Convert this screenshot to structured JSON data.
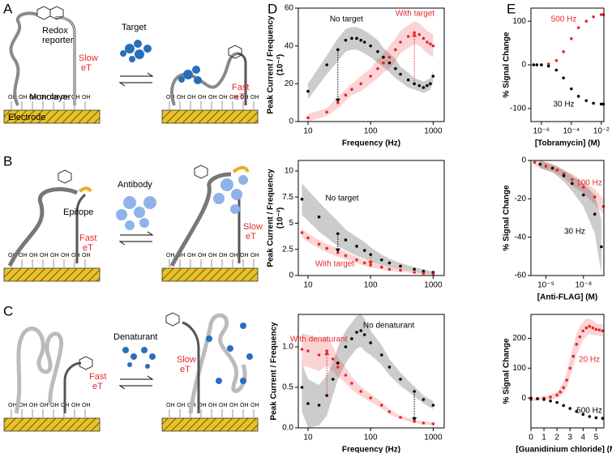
{
  "schematic": {
    "panel_letters": [
      "A",
      "B",
      "C",
      "D",
      "E"
    ],
    "surface_group": "OH",
    "a": {
      "reporter": [
        "Redox",
        "reporter"
      ],
      "slow_et": [
        "Slow",
        "eT"
      ],
      "target": "Target",
      "monolayer": "Monolayer",
      "fast_et": [
        "Fast",
        "eT"
      ],
      "electrode": "Electrode"
    },
    "b": {
      "antibody": "Antibody",
      "epitope": "Epitope",
      "fast_et": [
        "Fast",
        "eT"
      ],
      "slow_et": [
        "Slow",
        "eT"
      ]
    },
    "c": {
      "denaturant": "Denaturant",
      "fast_et": [
        "Fast",
        "eT"
      ],
      "slow_et": [
        "Slow",
        "eT"
      ]
    }
  },
  "chart_data": [
    {
      "type": "scatter",
      "xscale": "log",
      "ylabel": "Peak Current / Frequency",
      "yunit": "(10⁻³)",
      "xlabel": "Frequency (Hz)",
      "xlim": [
        7,
        1500
      ],
      "xticks": [
        10,
        100,
        1000
      ],
      "ylim": [
        0,
        60
      ],
      "yticks": [
        0,
        20,
        40,
        60
      ],
      "series": [
        {
          "name": "No target",
          "color": "#000000",
          "x": [
            10,
            20,
            30,
            40,
            50,
            60,
            70,
            80,
            100,
            130,
            160,
            200,
            250,
            300,
            400,
            500,
            600,
            700,
            800,
            900,
            1000
          ],
          "values": [
            16,
            30,
            38,
            43,
            44,
            44,
            43,
            42,
            40,
            37,
            34,
            31,
            28,
            25,
            22,
            20,
            19,
            18,
            19,
            20,
            24
          ],
          "error": [
            4,
            5,
            6,
            6,
            6,
            6,
            6,
            6,
            6,
            6,
            5,
            5,
            5,
            4,
            4,
            3,
            3,
            3,
            3,
            3,
            3
          ]
        },
        {
          "name": "With target",
          "color": "#e8262a",
          "x": [
            10,
            20,
            30,
            40,
            50,
            70,
            100,
            130,
            160,
            200,
            250,
            300,
            400,
            500,
            600,
            700,
            800,
            900,
            1000
          ],
          "values": [
            2,
            5,
            10,
            14,
            17,
            20,
            24,
            28,
            31,
            34,
            38,
            42,
            45,
            47,
            46,
            44,
            42,
            41,
            40
          ],
          "error": [
            2,
            2,
            3,
            3,
            3,
            4,
            4,
            5,
            5,
            6,
            6,
            6,
            6,
            6,
            6,
            6,
            6,
            6,
            6
          ]
        }
      ],
      "arrows": [
        {
          "x": 30,
          "from": 38,
          "to": 10,
          "color": "#000000"
        },
        {
          "x": 500,
          "from": 20,
          "to": 47,
          "color": "#e8262a"
        }
      ]
    },
    {
      "type": "scatter",
      "xscale": "log",
      "ylabel": "Peak Current / Frequency",
      "yunit": "(10⁻³)",
      "xlim": [
        7,
        1500
      ],
      "xticks": [
        10,
        100,
        1000
      ],
      "ylim": [
        0,
        11
      ],
      "yticks": [
        0,
        2.5,
        5,
        7.5,
        10
      ],
      "series": [
        {
          "name": "No target",
          "color": "#000000",
          "x": [
            8,
            15,
            30,
            40,
            60,
            80,
            100,
            150,
            200,
            300,
            500,
            700,
            1000
          ],
          "values": [
            7.3,
            5.6,
            4.0,
            3.4,
            2.8,
            2.4,
            2.0,
            1.5,
            1.2,
            0.9,
            0.6,
            0.4,
            0.3
          ],
          "error": [
            1.5,
            1.4,
            1.2,
            1.0,
            0.9,
            0.8,
            0.7,
            0.5,
            0.4,
            0.3,
            0.2,
            0.2,
            0.1
          ]
        },
        {
          "name": "With target",
          "color": "#e8262a",
          "x": [
            8,
            10,
            15,
            20,
            30,
            40,
            60,
            80,
            100,
            150,
            200,
            300,
            500,
            700,
            1000
          ],
          "values": [
            4.1,
            3.6,
            3.0,
            2.6,
            2.2,
            1.9,
            1.5,
            1.2,
            1.0,
            0.8,
            0.6,
            0.5,
            0.3,
            0.2,
            0.15
          ],
          "error": [
            0.4,
            0.4,
            0.4,
            0.4,
            0.4,
            0.35,
            0.3,
            0.3,
            0.25,
            0.2,
            0.2,
            0.15,
            0.1,
            0.1,
            0.1
          ]
        }
      ],
      "arrows": [
        {
          "x": 30,
          "from": 4.0,
          "to": 2.2,
          "color": "#000000"
        },
        {
          "x": 100,
          "from": 2.0,
          "to": 1.0,
          "color": "#e8262a"
        }
      ]
    },
    {
      "type": "scatter",
      "xscale": "log",
      "ylabel": "Peak Current / Frequency",
      "xlabel": "Frequency (Hz)",
      "xlim": [
        7,
        1500
      ],
      "xticks": [
        10,
        100,
        1000
      ],
      "ylim": [
        0,
        1.4
      ],
      "yticks": [
        {
          "value": 0,
          "label": "0.0"
        },
        0.5,
        {
          "value": 1,
          "label": "1.0"
        }
      ],
      "series": [
        {
          "name": "No denaturant",
          "color": "#000000",
          "x": [
            8,
            10,
            15,
            20,
            25,
            30,
            40,
            50,
            60,
            70,
            80,
            100,
            150,
            200,
            300,
            500,
            700,
            1000
          ],
          "values": [
            0.5,
            0.3,
            0.28,
            0.4,
            0.6,
            0.8,
            1.0,
            1.1,
            1.18,
            1.2,
            1.15,
            1.05,
            0.9,
            0.75,
            0.6,
            0.45,
            0.35,
            0.28
          ],
          "error": [
            0.3,
            0.3,
            0.25,
            0.25,
            0.2,
            0.2,
            0.2,
            0.2,
            0.2,
            0.2,
            0.2,
            0.15,
            0.12,
            0.1,
            0.08,
            0.06,
            0.05,
            0.05
          ]
        },
        {
          "name": "With denaturant",
          "color": "#e8262a",
          "x": [
            8,
            10,
            15,
            20,
            25,
            30,
            40,
            50,
            70,
            100,
            150,
            200,
            300,
            500,
            700,
            1000
          ],
          "values": [
            0.97,
            0.95,
            0.9,
            0.95,
            0.85,
            0.75,
            0.65,
            0.55,
            0.45,
            0.37,
            0.28,
            0.2,
            0.13,
            0.08,
            0.06,
            0.05
          ],
          "error": [
            0.2,
            0.2,
            0.2,
            0.18,
            0.15,
            0.12,
            0.1,
            0.08,
            0.06,
            0.05,
            0.04,
            0.03,
            0.02,
            0.02,
            0.02,
            0.02
          ]
        }
      ],
      "arrows": [
        {
          "x": 20,
          "from": 0.4,
          "to": 0.95,
          "color": "#e8262a"
        },
        {
          "x": 500,
          "from": 0.45,
          "to": 0.08,
          "color": "#000000"
        }
      ]
    },
    {
      "type": "scatter",
      "xscale": "log",
      "ylabel": "% Signal Change",
      "xlabel": "[Tobramycin] (M)",
      "xlim": [
        2e-07,
        0.015
      ],
      "xticks": [
        {
          "value": 1e-06,
          "label": "10⁻⁶"
        },
        {
          "value": 0.0001,
          "label": "10⁻⁴"
        },
        {
          "value": 0.01,
          "label": "10⁻²"
        }
      ],
      "ylim": [
        -130,
        130
      ],
      "yticks": [
        -100,
        0,
        100
      ],
      "series": [
        {
          "name": "500 Hz",
          "color": "#e8262a",
          "x": [
            3e-07,
            5e-07,
            1e-06,
            3e-06,
            1e-05,
            3e-05,
            0.0001,
            0.0003,
            0.001,
            0.003,
            0.01,
            0.014
          ],
          "values": [
            0,
            0,
            0,
            2,
            10,
            30,
            60,
            85,
            100,
            110,
            115,
            115
          ]
        },
        {
          "name": "30 Hz",
          "color": "#000000",
          "x": [
            3e-07,
            5e-07,
            1e-06,
            3e-06,
            1e-05,
            3e-05,
            0.0001,
            0.0003,
            0.001,
            0.003,
            0.01,
            0.014
          ],
          "values": [
            0,
            0,
            0,
            -3,
            -12,
            -30,
            -55,
            -72,
            -82,
            -88,
            -90,
            -90
          ]
        }
      ]
    },
    {
      "type": "scatter",
      "xscale": "log",
      "ylabel": "% Signal Change",
      "xlabel": "[Anti-FLAG] (M)",
      "xlim": [
        4e-10,
        3.5e-08
      ],
      "xticks": [
        {
          "value": 1e-09,
          "label": "10⁻⁹"
        },
        {
          "value": 1e-08,
          "label": "10⁻⁸"
        }
      ],
      "ylim": [
        -60,
        0
      ],
      "yticks": [
        -60,
        -40,
        -20,
        0
      ],
      "series": [
        {
          "name": "100 Hz",
          "color": "#e8262a",
          "x": [
            5e-10,
            1e-09,
            2e-09,
            3e-09,
            5e-09,
            1e-08,
            2e-08,
            3.4e-08
          ],
          "values": [
            -1,
            -3,
            -5,
            -7,
            -10,
            -14,
            -19,
            -24
          ],
          "error": [
            2,
            2,
            2,
            2,
            3,
            3,
            4,
            4
          ]
        },
        {
          "name": "30 Hz",
          "color": "#000000",
          "x": [
            7e-10,
            1.5e-09,
            3e-09,
            5e-09,
            1e-08,
            2e-08,
            3e-08
          ],
          "values": [
            -2,
            -4,
            -8,
            -12,
            -18,
            -28,
            -45
          ],
          "error": [
            2,
            2,
            3,
            4,
            6,
            10,
            14
          ]
        }
      ]
    },
    {
      "type": "scatter",
      "xscale": "linear",
      "ylabel": "% Signal Change",
      "xlabel": "[Guanidinium chloride] (M)",
      "xlim": [
        0,
        5.6
      ],
      "xticks": [
        0,
        1,
        2,
        3,
        4,
        5
      ],
      "ylim": [
        -100,
        280
      ],
      "yticks": [
        0,
        100,
        200
      ],
      "series": [
        {
          "name": "20 Hz",
          "color": "#e8262a",
          "x": [
            0,
            0.5,
            1,
            1.5,
            2,
            2.25,
            2.5,
            2.75,
            3,
            3.25,
            3.5,
            3.75,
            4,
            4.25,
            4.5,
            4.75,
            5,
            5.25,
            5.5
          ],
          "values": [
            -5,
            -3,
            0,
            3,
            10,
            20,
            35,
            60,
            100,
            140,
            180,
            205,
            225,
            235,
            240,
            235,
            230,
            228,
            225
          ],
          "error": [
            5,
            5,
            5,
            8,
            10,
            15,
            20,
            25,
            30,
            35,
            35,
            35,
            30,
            30,
            25,
            25,
            20,
            20,
            20
          ]
        },
        {
          "name": "500 Hz",
          "color": "#000000",
          "x": [
            0,
            0.5,
            1,
            1.5,
            2,
            2.5,
            3,
            3.5,
            4,
            4.5,
            5,
            5.5
          ],
          "values": [
            0,
            -2,
            -5,
            -10,
            -15,
            -25,
            -35,
            -45,
            -55,
            -62,
            -66,
            -68
          ]
        }
      ]
    }
  ]
}
